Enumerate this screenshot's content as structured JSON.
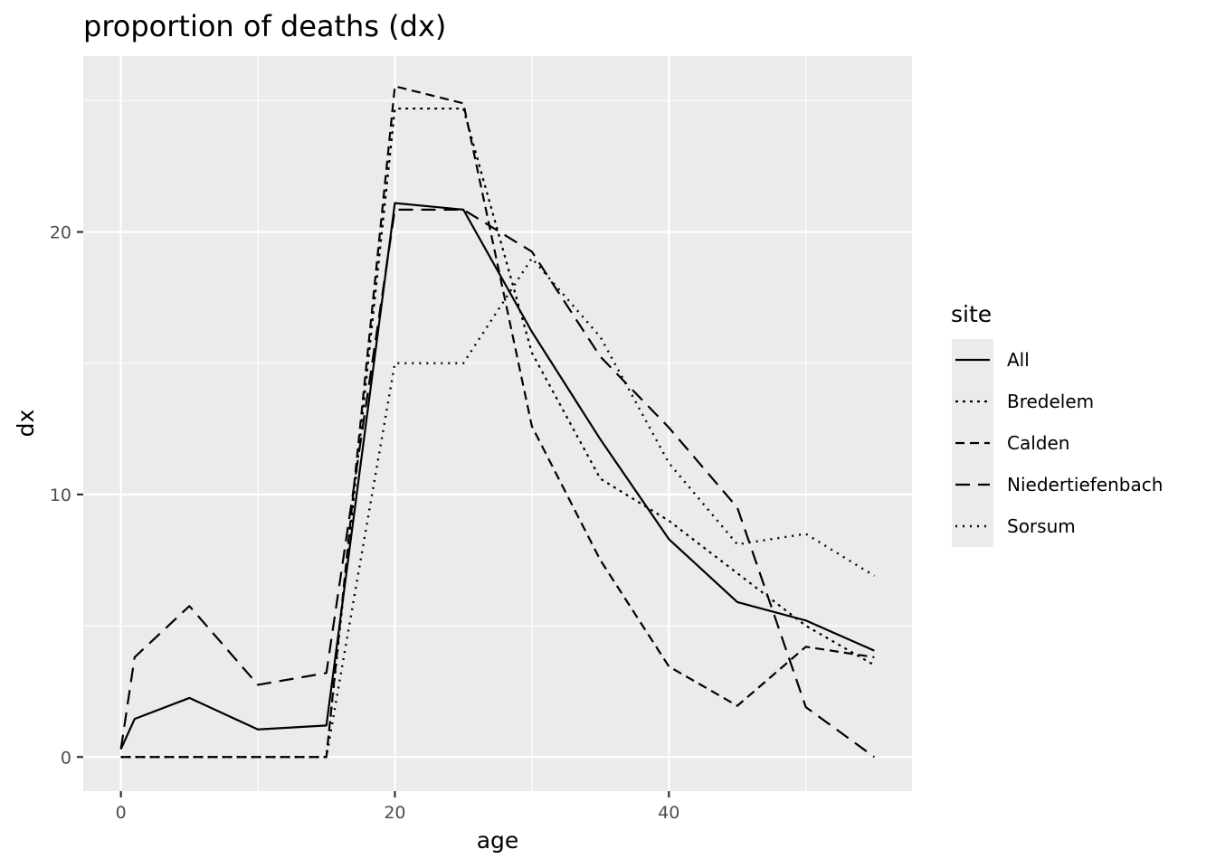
{
  "chart_data": {
    "type": "line",
    "title": "proportion of deaths (dx)",
    "xlabel": "age",
    "ylabel": "dx",
    "xlim": [
      -2.75,
      57.75
    ],
    "ylim": [
      -1.3,
      26.7
    ],
    "x_ticks": [
      0,
      20,
      40
    ],
    "y_ticks": [
      0,
      10,
      20
    ],
    "x_minor": [
      10,
      30,
      50
    ],
    "y_minor": [
      5,
      15,
      25
    ],
    "grid": true,
    "legend": {
      "title": "site",
      "position": "right"
    },
    "x": [
      0,
      1,
      5,
      10,
      15,
      20,
      25,
      30,
      35,
      40,
      45,
      50,
      55
    ],
    "series": [
      {
        "name": "All",
        "dash": "none",
        "stroke_width": 2.2,
        "values": [
          0.3,
          1.45,
          2.25,
          1.05,
          1.2,
          21.1,
          20.85,
          16.2,
          12.1,
          8.3,
          5.9,
          5.2,
          4.05
        ]
      },
      {
        "name": "Bredelem",
        "dash": "3,5",
        "stroke_width": 2.2,
        "values": [
          0.0,
          0.0,
          0.0,
          0.0,
          0.0,
          24.7,
          24.7,
          15.4,
          10.6,
          9.0,
          7.0,
          5.0,
          3.5
        ]
      },
      {
        "name": "Calden",
        "dash": "10,6",
        "stroke_width": 2.2,
        "values": [
          0.0,
          0.0,
          0.0,
          0.0,
          0.0,
          25.55,
          24.9,
          12.6,
          7.5,
          3.45,
          1.95,
          4.2,
          3.8
        ]
      },
      {
        "name": "Niedertiefenbach",
        "dash": "16,9",
        "stroke_width": 2.2,
        "values": [
          0.3,
          3.8,
          5.75,
          2.75,
          3.2,
          20.85,
          20.85,
          19.25,
          15.25,
          12.55,
          9.5,
          1.9,
          0.0
        ]
      },
      {
        "name": "Sorsum",
        "dash": "2,6",
        "stroke_width": 2.4,
        "values": [
          0.0,
          0.0,
          0.0,
          0.0,
          0.0,
          15.0,
          15.0,
          19.0,
          16.0,
          11.2,
          8.1,
          8.5,
          6.9
        ]
      }
    ],
    "colors": {
      "panel": "#ebebeb",
      "grid": "#ffffff",
      "line": "#000000",
      "tick_text": "#4d4d4d",
      "legend_key_bg": "#ebebeb"
    }
  }
}
